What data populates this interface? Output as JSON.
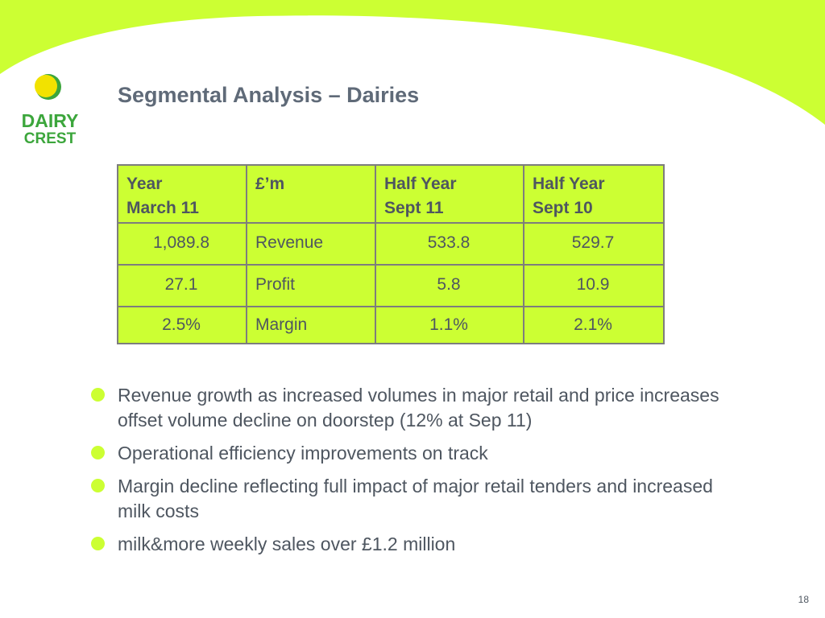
{
  "slide": {
    "title": "Segmental Analysis – Dairies",
    "page_number": "18"
  },
  "logo": {
    "line1": "DAIRY",
    "line2": "CREST"
  },
  "table": {
    "headers": [
      {
        "line1": "Year",
        "line2": "March 11"
      },
      {
        "line1": "£’m",
        "line2": ""
      },
      {
        "line1": "Half Year",
        "line2": "Sept 11"
      },
      {
        "line1": "Half Year",
        "line2": "Sept 10"
      }
    ],
    "rows": [
      [
        "1,089.8",
        "Revenue",
        "533.8",
        "529.7"
      ],
      [
        "27.1",
        "Profit",
        "5.8",
        "10.9"
      ],
      [
        "2.5%",
        "Margin",
        "1.1%",
        "2.1%"
      ]
    ]
  },
  "bullets": [
    "Revenue growth as increased volumes in major retail and price increases offset volume decline on doorstep (12% at Sep 11)",
    "Operational efficiency improvements on track",
    "Margin decline reflecting full impact of major retail tenders and increased milk costs",
    "milk&more weekly sales over £1.2 million"
  ],
  "colors": {
    "accent": "#ccff33",
    "title": "#5f6a78",
    "text": "#4e5660",
    "logo_green": "#3ca63c",
    "logo_yellow": "#f2e200"
  }
}
